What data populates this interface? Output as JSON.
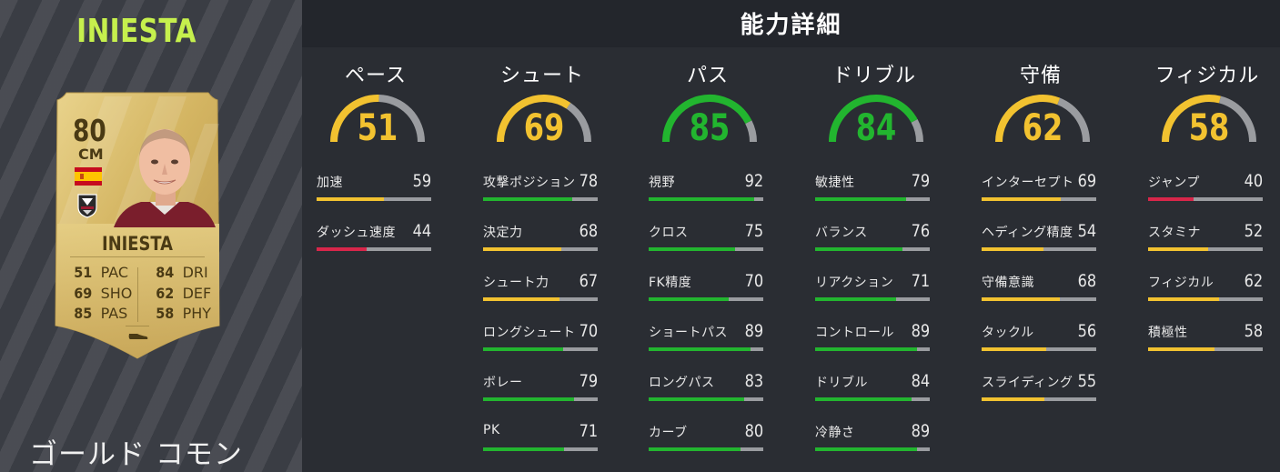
{
  "player": {
    "name_title": "INIESTA",
    "rarity": "ゴールド コモン",
    "card": {
      "rating": "80",
      "position": "CM",
      "name": "INIESTA",
      "nation_flag": "spain-flag-icon",
      "club_badge": "vissel-kobe-badge-icon",
      "stats_left": [
        {
          "value": "51",
          "abbr": "PAC"
        },
        {
          "value": "69",
          "abbr": "SHO"
        },
        {
          "value": "85",
          "abbr": "PAS"
        }
      ],
      "stats_right": [
        {
          "value": "84",
          "abbr": "DRI"
        },
        {
          "value": "62",
          "abbr": "DEF"
        },
        {
          "value": "58",
          "abbr": "PHY"
        }
      ]
    }
  },
  "header": {
    "title": "能力詳細"
  },
  "colors": {
    "yellow": "#f2c230",
    "green": "#22b52f",
    "red": "#d8264a",
    "track": "#9a9ca0",
    "accent": "#c6f04d"
  },
  "categories": [
    {
      "name": "ペース",
      "value": 51,
      "stats": [
        {
          "label": "加速",
          "value": 59
        },
        {
          "label": "ダッシュ速度",
          "value": 44
        }
      ]
    },
    {
      "name": "シュート",
      "value": 69,
      "stats": [
        {
          "label": "攻撃ポジション",
          "value": 78
        },
        {
          "label": "決定力",
          "value": 68
        },
        {
          "label": "シュート力",
          "value": 67
        },
        {
          "label": "ロングシュート",
          "value": 70
        },
        {
          "label": "ボレー",
          "value": 79
        },
        {
          "label": "PK",
          "value": 71
        }
      ]
    },
    {
      "name": "パス",
      "value": 85,
      "stats": [
        {
          "label": "視野",
          "value": 92
        },
        {
          "label": "クロス",
          "value": 75
        },
        {
          "label": "FK精度",
          "value": 70
        },
        {
          "label": "ショートパス",
          "value": 89
        },
        {
          "label": "ロングパス",
          "value": 83
        },
        {
          "label": "カーブ",
          "value": 80
        }
      ]
    },
    {
      "name": "ドリブル",
      "value": 84,
      "stats": [
        {
          "label": "敏捷性",
          "value": 79
        },
        {
          "label": "バランス",
          "value": 76
        },
        {
          "label": "リアクション",
          "value": 71
        },
        {
          "label": "コントロール",
          "value": 89
        },
        {
          "label": "ドリブル",
          "value": 84
        },
        {
          "label": "冷静さ",
          "value": 89
        }
      ]
    },
    {
      "name": "守備",
      "value": 62,
      "stats": [
        {
          "label": "インターセプト",
          "value": 69
        },
        {
          "label": "ヘディング精度",
          "value": 54
        },
        {
          "label": "守備意識",
          "value": 68
        },
        {
          "label": "タックル",
          "value": 56
        },
        {
          "label": "スライディング",
          "value": 55
        }
      ]
    },
    {
      "name": "フィジカル",
      "value": 58,
      "stats": [
        {
          "label": "ジャンプ",
          "value": 40
        },
        {
          "label": "スタミナ",
          "value": 52
        },
        {
          "label": "フィジカル",
          "value": 62
        },
        {
          "label": "積極性",
          "value": 58
        }
      ]
    }
  ]
}
